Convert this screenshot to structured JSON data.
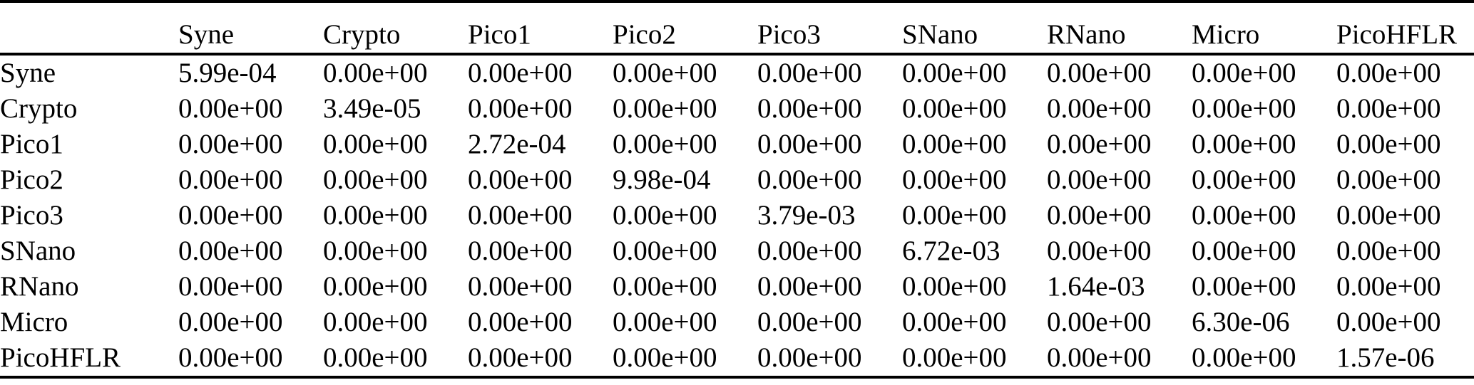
{
  "colors": {
    "background": "#ffffff",
    "text": "#000000",
    "rule": "#000000"
  },
  "table": {
    "description": "diagonal-variance-matrix",
    "headers": [
      "Syne",
      "Crypto",
      "Pico1",
      "Pico2",
      "Pico3",
      "SNano",
      "RNano",
      "Micro",
      "PicoHFLR"
    ],
    "rows": [
      {
        "label": "Syne",
        "values": [
          "5.99e-04",
          "0.00e+00",
          "0.00e+00",
          "0.00e+00",
          "0.00e+00",
          "0.00e+00",
          "0.00e+00",
          "0.00e+00",
          "0.00e+00"
        ]
      },
      {
        "label": "Crypto",
        "values": [
          "0.00e+00",
          "3.49e-05",
          "0.00e+00",
          "0.00e+00",
          "0.00e+00",
          "0.00e+00",
          "0.00e+00",
          "0.00e+00",
          "0.00e+00"
        ]
      },
      {
        "label": "Pico1",
        "values": [
          "0.00e+00",
          "0.00e+00",
          "2.72e-04",
          "0.00e+00",
          "0.00e+00",
          "0.00e+00",
          "0.00e+00",
          "0.00e+00",
          "0.00e+00"
        ]
      },
      {
        "label": "Pico2",
        "values": [
          "0.00e+00",
          "0.00e+00",
          "0.00e+00",
          "9.98e-04",
          "0.00e+00",
          "0.00e+00",
          "0.00e+00",
          "0.00e+00",
          "0.00e+00"
        ]
      },
      {
        "label": "Pico3",
        "values": [
          "0.00e+00",
          "0.00e+00",
          "0.00e+00",
          "0.00e+00",
          "3.79e-03",
          "0.00e+00",
          "0.00e+00",
          "0.00e+00",
          "0.00e+00"
        ]
      },
      {
        "label": "SNano",
        "values": [
          "0.00e+00",
          "0.00e+00",
          "0.00e+00",
          "0.00e+00",
          "0.00e+00",
          "6.72e-03",
          "0.00e+00",
          "0.00e+00",
          "0.00e+00"
        ]
      },
      {
        "label": "RNano",
        "values": [
          "0.00e+00",
          "0.00e+00",
          "0.00e+00",
          "0.00e+00",
          "0.00e+00",
          "0.00e+00",
          "1.64e-03",
          "0.00e+00",
          "0.00e+00"
        ]
      },
      {
        "label": "Micro",
        "values": [
          "0.00e+00",
          "0.00e+00",
          "0.00e+00",
          "0.00e+00",
          "0.00e+00",
          "0.00e+00",
          "0.00e+00",
          "6.30e-06",
          "0.00e+00"
        ]
      },
      {
        "label": "PicoHFLR",
        "values": [
          "0.00e+00",
          "0.00e+00",
          "0.00e+00",
          "0.00e+00",
          "0.00e+00",
          "0.00e+00",
          "0.00e+00",
          "0.00e+00",
          "1.57e-06"
        ]
      }
    ]
  }
}
